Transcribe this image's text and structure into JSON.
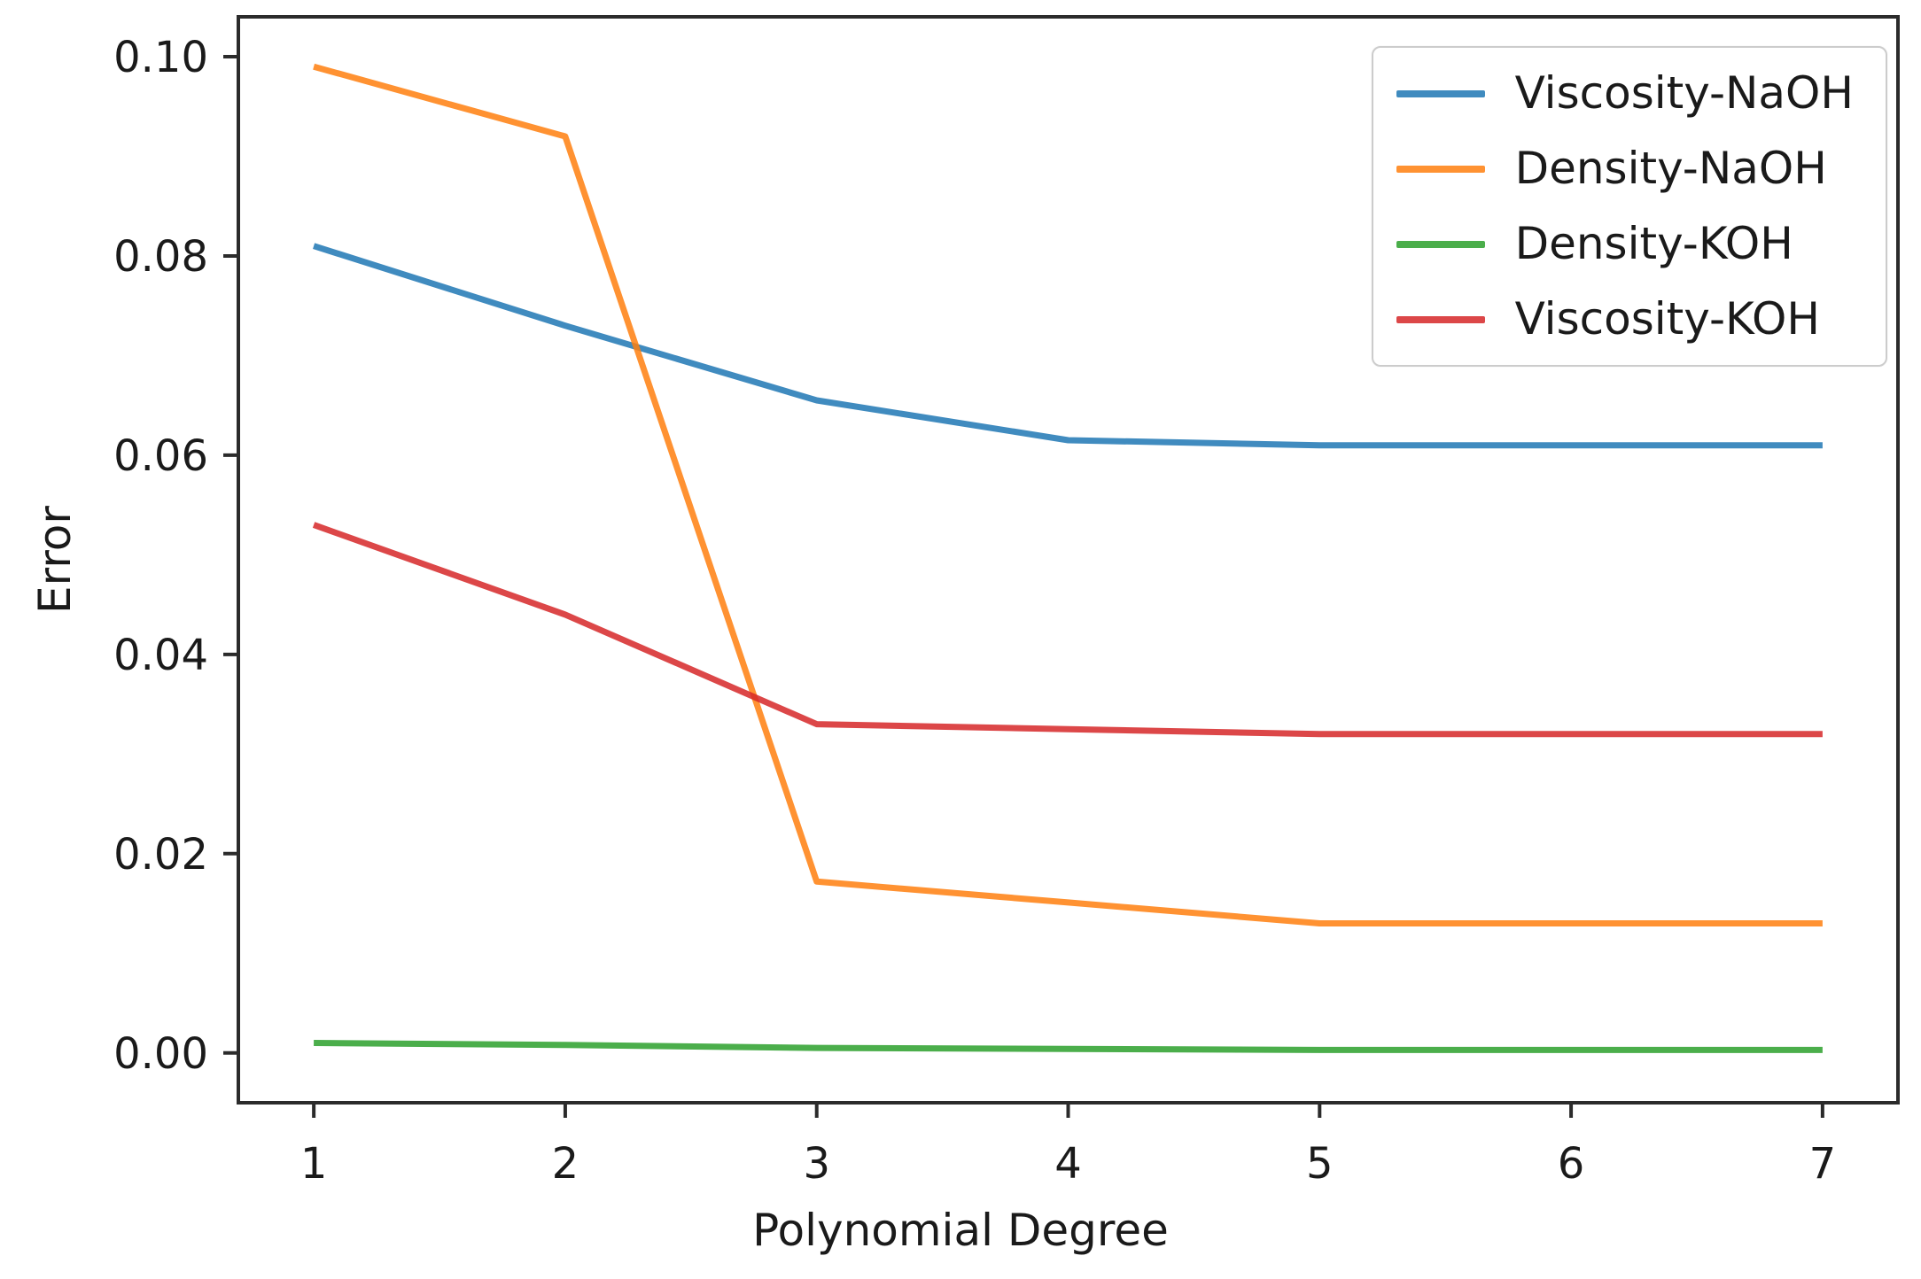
{
  "chart_data": {
    "type": "line",
    "title": "",
    "xlabel": "Polynomial Degree",
    "ylabel": "Error",
    "x": [
      1,
      2,
      3,
      4,
      5,
      6,
      7
    ],
    "series": [
      {
        "name": "Viscosity-NaOH",
        "color": "#1f77b4",
        "values": [
          0.081,
          0.073,
          0.0655,
          0.0615,
          0.061,
          0.061,
          0.061
        ]
      },
      {
        "name": "Density-NaOH",
        "color": "#ff7f0e",
        "values": [
          0.099,
          0.092,
          0.0172,
          0.0151,
          0.013,
          0.013,
          0.013
        ]
      },
      {
        "name": "Density-KOH",
        "color": "#2ca02c",
        "values": [
          0.001,
          0.0008,
          0.0005,
          0.0004,
          0.0003,
          0.0003,
          0.0003
        ]
      },
      {
        "name": "Viscosity-KOH",
        "color": "#d62728",
        "values": [
          0.053,
          0.044,
          0.033,
          0.0325,
          0.032,
          0.032,
          0.032
        ]
      }
    ],
    "xticks": [
      "1",
      "2",
      "3",
      "4",
      "5",
      "6",
      "7"
    ],
    "yticks": [
      "0.00",
      "0.02",
      "0.04",
      "0.06",
      "0.08",
      "0.10"
    ],
    "xlim": [
      0.7,
      7.3
    ],
    "ylim": [
      -0.005,
      0.104
    ],
    "grid": false,
    "legend_position": "upper right",
    "axis_color": "#2b2b2b",
    "text_color": "#1a1a1a",
    "line_opacity": 0.85
  }
}
